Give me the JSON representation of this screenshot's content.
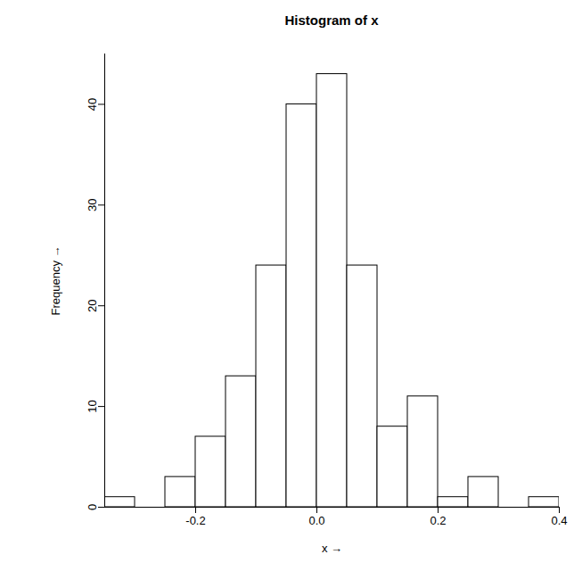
{
  "chart_data": {
    "type": "histogram",
    "title": "Histogram of x",
    "x_label": "x",
    "y_label": "Frequency",
    "bins": [
      -0.35,
      -0.3,
      -0.25,
      -0.2,
      -0.15,
      -0.1,
      -0.05,
      0.0,
      0.05,
      0.1,
      0.15,
      0.2,
      0.25,
      0.3,
      0.35,
      0.4
    ],
    "values": [
      1,
      0,
      3,
      7,
      13,
      24,
      40,
      43,
      24,
      8,
      11,
      1,
      3,
      0,
      1
    ],
    "color": "#ffffff",
    "xlim": [
      -0.35,
      0.4
    ],
    "xticks": [
      -0.2,
      {
        "value": 0,
        "label": "0.0"
      },
      0.2,
      0.4
    ],
    "ylim": [
      0,
      45
    ],
    "yticks": [
      0,
      10,
      20,
      30,
      40
    ],
    "grid": false
  }
}
